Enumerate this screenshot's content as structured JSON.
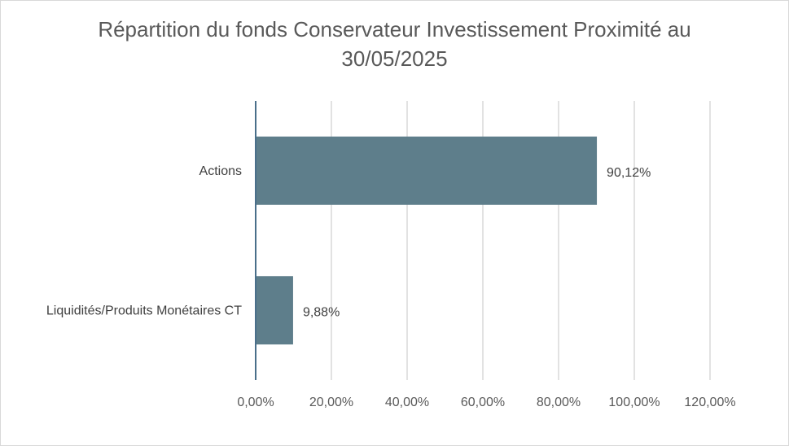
{
  "chart_data": {
    "type": "bar",
    "orientation": "horizontal",
    "title_lines": [
      "Répartition du fonds Conservateur Investissement Proximité au",
      "30/05/2025"
    ],
    "categories": [
      "Actions",
      "Liquidités/Produits Monétaires CT"
    ],
    "values": [
      90.12,
      9.88
    ],
    "data_labels": [
      "90,12%",
      "9,88%"
    ],
    "xlim": [
      0,
      120
    ],
    "x_ticks": [
      0,
      20,
      40,
      60,
      80,
      100,
      120
    ],
    "x_tick_labels": [
      "0,00%",
      "20,00%",
      "40,00%",
      "60,00%",
      "80,00%",
      "100,00%",
      "120,00%"
    ],
    "grid": true,
    "legend": "none",
    "colors": {
      "bar": "#5e7e8b",
      "grid": "#d9d9d9",
      "axis": "#4a6f8a"
    }
  }
}
